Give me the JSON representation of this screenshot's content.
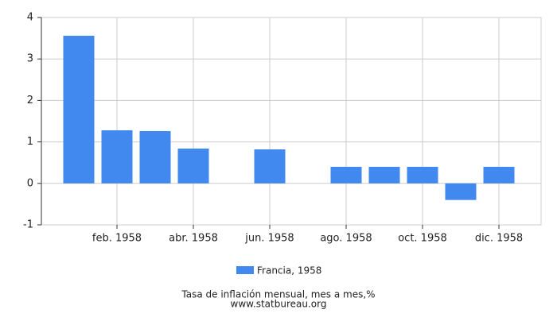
{
  "chart_data": {
    "type": "bar",
    "categories": [
      null,
      "feb. 1958",
      null,
      "abr. 1958",
      null,
      "jun. 1958",
      null,
      "ago. 1958",
      null,
      "oct. 1958",
      null,
      "dic. 1958"
    ],
    "series": [
      {
        "name": "Francia, 1958",
        "color": "#4189ee",
        "values": [
          3.56,
          1.28,
          1.26,
          0.84,
          0,
          0.82,
          0,
          0.4,
          0.4,
          0.4,
          -0.4,
          0.4
        ]
      }
    ],
    "ylim": [
      -1,
      4
    ],
    "yticks": [
      -1,
      0,
      1,
      2,
      3,
      4
    ],
    "grid": true,
    "footer": "Tasa de inflación mensual, mes a mes,%",
    "source": "www.statbureau.org"
  }
}
